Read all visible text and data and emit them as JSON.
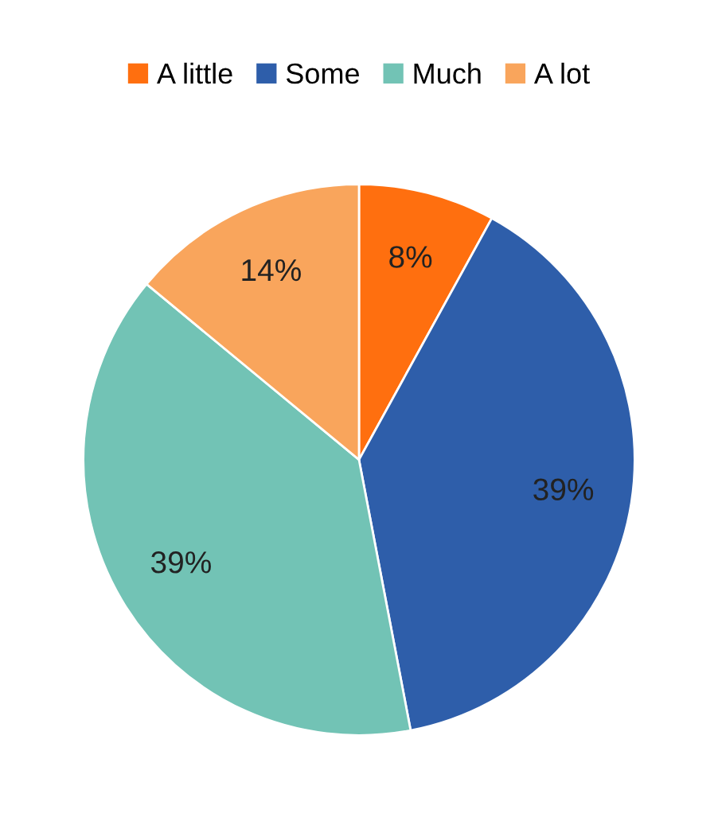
{
  "chart_data": {
    "type": "pie",
    "categories": [
      "A little",
      "Some",
      "Much",
      "A lot"
    ],
    "values": [
      8,
      39,
      39,
      14
    ],
    "colors": [
      "#ff6f0f",
      "#2e5eaa",
      "#72c3b5",
      "#f9a55c"
    ],
    "value_labels": [
      "8%",
      "39%",
      "39%",
      "14%"
    ],
    "legend": "top"
  }
}
